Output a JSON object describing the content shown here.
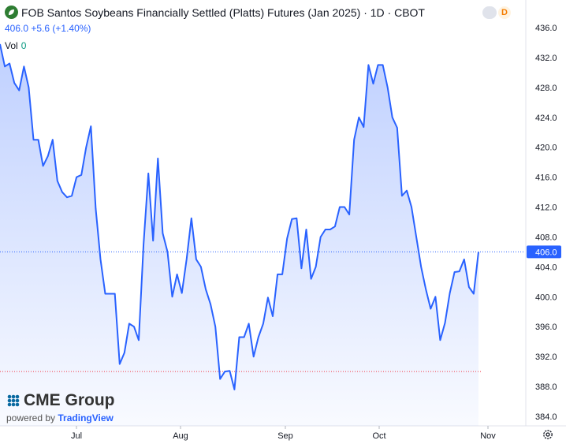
{
  "header": {
    "title": "FOB Santos Soybeans Financially Settled (Platts) Futures (Jan 2025) · 1D · CBOT",
    "price": "406.0",
    "change": "+5.6 (+1.40%)",
    "vol_label": "Vol",
    "vol_value": "0",
    "badge": "D"
  },
  "branding": {
    "name": "CME Group",
    "powered_by": "powered by",
    "provider": "TradingView"
  },
  "colors": {
    "line": "#2962ff",
    "fill": "#2962ff",
    "baseline": "#f23645",
    "text": "#131722",
    "axis_text": "#131722"
  },
  "chart_data": {
    "type": "area",
    "ylim": [
      384.0,
      436.0
    ],
    "y_ticks": [
      "384.0",
      "388.0",
      "392.0",
      "396.0",
      "400.0",
      "404.0",
      "408.0",
      "412.0",
      "416.0",
      "420.0",
      "424.0",
      "428.0",
      "432.0",
      "436.0"
    ],
    "x_ticks": [
      "Jul",
      "Aug",
      "Sep",
      "Oct",
      "Nov"
    ],
    "last_value_label": "406.0",
    "last_value": 406.0,
    "baseline": 390.0,
    "series": [
      {
        "values": [
          433.8,
          430.8,
          431.2,
          428.6,
          427.6,
          430.8,
          428.0,
          421.0,
          421.0,
          417.5,
          418.8,
          421.0,
          415.5,
          414.0,
          413.3,
          413.5,
          416.0,
          416.3,
          420.0,
          422.8,
          411.8,
          405.0,
          400.4,
          400.4,
          400.4,
          391.0,
          392.5,
          396.4,
          396.0,
          394.2,
          407.0,
          416.5,
          407.5,
          418.5,
          408.5,
          406.0,
          400.0,
          403.0,
          400.5,
          405.0,
          410.5,
          405.0,
          404.0,
          401.0,
          399.0,
          396.0,
          389.0,
          390.0,
          390.1,
          387.6,
          394.6,
          394.6,
          396.4,
          392.0,
          394.6,
          396.4,
          399.9,
          397.4,
          403.0,
          403.0,
          407.8,
          410.4,
          410.5,
          403.8,
          409.0,
          402.4,
          404.0,
          408.0,
          409.0,
          409.0,
          409.4,
          412.0,
          412.0,
          411.0,
          421.0,
          424.0,
          422.7,
          431.0,
          428.5,
          431.0,
          431.0,
          428.0,
          424.0,
          422.6,
          413.5,
          414.2,
          412.0,
          408.0,
          404.0,
          401.0,
          398.4,
          400.0,
          394.2,
          396.5,
          400.5,
          403.3,
          403.4,
          405.0,
          401.3,
          400.4,
          406.0
        ]
      }
    ]
  }
}
